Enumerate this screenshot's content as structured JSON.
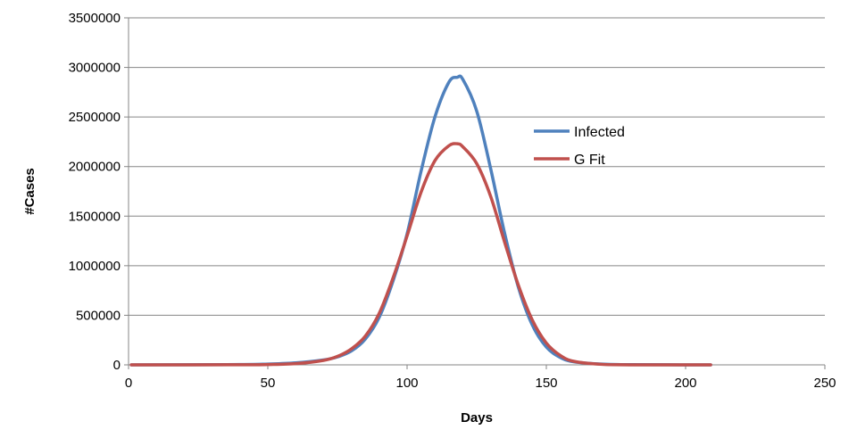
{
  "chart_data": {
    "type": "line",
    "xlabel": "Days",
    "ylabel": "#Cases",
    "xlim": [
      0,
      250
    ],
    "ylim": [
      0,
      3500000
    ],
    "x_ticks": [
      0,
      50,
      100,
      150,
      200,
      250
    ],
    "y_ticks": [
      0,
      500000,
      1000000,
      1500000,
      2000000,
      2500000,
      3000000,
      3500000
    ],
    "x_tick_labels": [
      "0",
      "50",
      "100",
      "150",
      "200",
      "250"
    ],
    "y_tick_labels": [
      "0",
      "500000",
      "1000000",
      "1500000",
      "2000000",
      "2500000",
      "3000000",
      "3500000"
    ],
    "grid": "horizontal",
    "legend_position": "right",
    "series": [
      {
        "name": "Infected",
        "color": "#4f81bd",
        "x": [
          1,
          40,
          50,
          60,
          70,
          75,
          80,
          85,
          90,
          95,
          100,
          105,
          110,
          115,
          118,
          120,
          125,
          130,
          135,
          140,
          145,
          150,
          155,
          160,
          170,
          180,
          209
        ],
        "y": [
          0,
          3000,
          8000,
          20000,
          50000,
          80000,
          140000,
          260000,
          480000,
          850000,
          1320000,
          1950000,
          2500000,
          2850000,
          2900000,
          2880000,
          2560000,
          1980000,
          1330000,
          780000,
          400000,
          180000,
          75000,
          30000,
          8000,
          2000,
          0
        ]
      },
      {
        "name": "G Fit",
        "color": "#c0504d",
        "x": [
          1,
          40,
          50,
          60,
          70,
          75,
          80,
          85,
          90,
          95,
          100,
          105,
          110,
          115,
          118,
          120,
          125,
          130,
          135,
          140,
          145,
          150,
          155,
          160,
          170,
          180,
          209
        ],
        "y": [
          0,
          1000,
          3000,
          12000,
          45000,
          85000,
          160000,
          290000,
          520000,
          880000,
          1300000,
          1740000,
          2060000,
          2210000,
          2230000,
          2200000,
          2030000,
          1700000,
          1240000,
          800000,
          450000,
          220000,
          95000,
          35000,
          5000,
          500,
          0
        ]
      }
    ]
  }
}
